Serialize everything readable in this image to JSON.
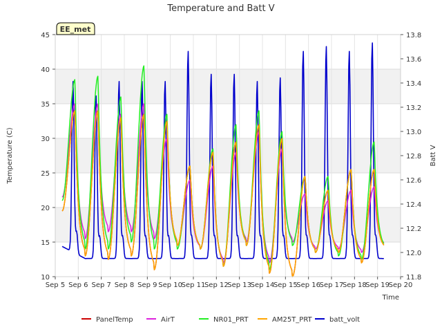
{
  "chart_data": {
    "type": "line",
    "title": "Temperature and Batt V",
    "xlabel": "Time",
    "ylabel": "Temperature (C)",
    "y2label": "Batt V",
    "site_badge": "EE_met",
    "xlim": [
      5,
      20
    ],
    "ylim": [
      10,
      45
    ],
    "y2lim": [
      11.8,
      13.8
    ],
    "x_ticks": [
      5,
      6,
      7,
      8,
      9,
      10,
      11,
      12,
      13,
      14,
      15,
      16,
      17,
      18,
      19,
      20
    ],
    "x_tick_labels": [
      "Sep 5",
      "Sep 6",
      "Sep 7",
      "Sep 8",
      "Sep 9",
      "Sep 10",
      "Sep 11",
      "Sep 12",
      "Sep 13",
      "Sep 14",
      "Sep 15",
      "Sep 16",
      "Sep 17",
      "Sep 18",
      "Sep 19",
      "Sep 20"
    ],
    "y_ticks": [
      10,
      15,
      20,
      25,
      30,
      35,
      40,
      45
    ],
    "y2_ticks": [
      "11.8",
      "12.0",
      "12.2",
      "12.4",
      "12.6",
      "12.8",
      "13.0",
      "13.2",
      "13.4",
      "13.6",
      "13.8"
    ],
    "grid": true,
    "legend_position": "bottom",
    "daily_min": {
      "AirT": [
        21.5,
        15.5,
        16.5,
        16.5,
        15.5,
        14.5,
        14.0,
        12.0,
        15.0,
        12.0,
        15.0,
        14.0,
        14.0,
        13.5,
        14.5,
        16.5
      ],
      "NR01_PRT": [
        21.0,
        14.0,
        14.0,
        15.0,
        14.0,
        14.0,
        14.0,
        11.5,
        14.5,
        11.0,
        14.5,
        13.5,
        13.0,
        12.5,
        14.0,
        15.5
      ],
      "AM25T_PRT": [
        19.5,
        13.0,
        12.5,
        13.0,
        11.0,
        14.5,
        14.0,
        11.5,
        14.5,
        10.5,
        10.0,
        13.5,
        13.5,
        12.0,
        14.0,
        15.5
      ],
      "PanelTemp": [
        19.5,
        13.0,
        12.5,
        13.0,
        11.0,
        14.5,
        14.0,
        11.5,
        14.5,
        10.5,
        10.0,
        13.5,
        13.5,
        12.0,
        14.0,
        15.5
      ],
      "batt_volt": [
        12.05,
        11.95,
        11.95,
        11.95,
        11.95,
        11.95,
        11.95,
        11.95,
        11.95,
        11.95,
        11.95,
        11.95,
        11.95,
        11.95,
        11.95,
        12.0
      ]
    },
    "daily_max": {
      "AirT": [
        35.0,
        35.0,
        33.5,
        35.0,
        30.0,
        24.0,
        26.0,
        28.0,
        31.0,
        28.5,
        22.0,
        21.0,
        22.5,
        23.0
      ],
      "NR01_PRT": [
        38.5,
        39.0,
        36.0,
        40.5,
        33.5,
        26.0,
        28.5,
        32.0,
        34.0,
        31.0,
        24.5,
        24.5,
        25.5,
        29.5
      ],
      "AM25T_PRT": [
        34.0,
        34.0,
        33.0,
        33.5,
        32.5,
        26.0,
        28.0,
        29.5,
        32.0,
        30.0,
        24.5,
        22.5,
        25.5,
        25.5
      ],
      "PanelTemp": [
        34.0,
        34.0,
        33.0,
        33.5,
        32.5,
        26.0,
        28.0,
        29.5,
        32.0,
        30.0,
        24.5,
        22.5,
        25.5,
        25.5
      ],
      "batt_volt": [
        13.42,
        13.3,
        13.42,
        13.42,
        13.42,
        13.67,
        13.48,
        13.48,
        13.42,
        13.45,
        13.67,
        13.71,
        13.67,
        13.74
      ]
    },
    "series": [
      {
        "name": "PanelTemp",
        "color": "#cc0000",
        "axis": "left"
      },
      {
        "name": "AirT",
        "color": "#dd22dd",
        "axis": "left"
      },
      {
        "name": "NR01_PRT",
        "color": "#22ee22",
        "axis": "left"
      },
      {
        "name": "AM25T_PRT",
        "color": "#ffa500",
        "axis": "left"
      },
      {
        "name": "batt_volt",
        "color": "#0000cc",
        "axis": "right"
      }
    ]
  }
}
